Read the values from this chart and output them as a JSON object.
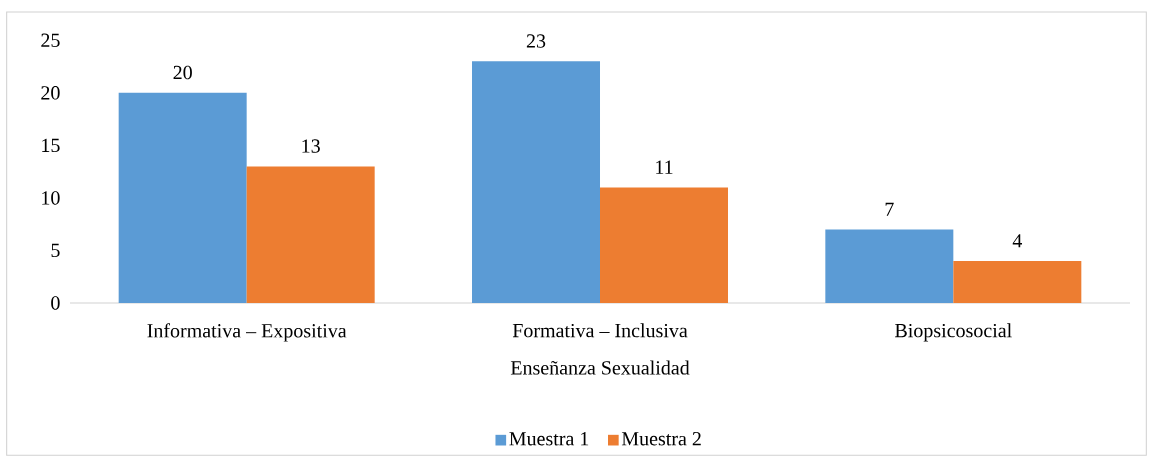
{
  "chart_data": {
    "type": "bar",
    "xlabel": "Enseñanza Sexualidad",
    "categories": [
      "Informativa – Expositiva",
      "Formativa – Inclusiva",
      "Biopsicosocial"
    ],
    "series": [
      {
        "name": "Muestra 1",
        "color": "#5b9bd5",
        "values": [
          20,
          23,
          7
        ]
      },
      {
        "name": "Muestra 2",
        "color": "#ed7d31",
        "values": [
          13,
          11,
          4
        ]
      }
    ],
    "ylim": [
      0,
      25
    ],
    "yticks": [
      0,
      5,
      10,
      15,
      20,
      25
    ],
    "data_labels": true,
    "legend": "bottom"
  }
}
